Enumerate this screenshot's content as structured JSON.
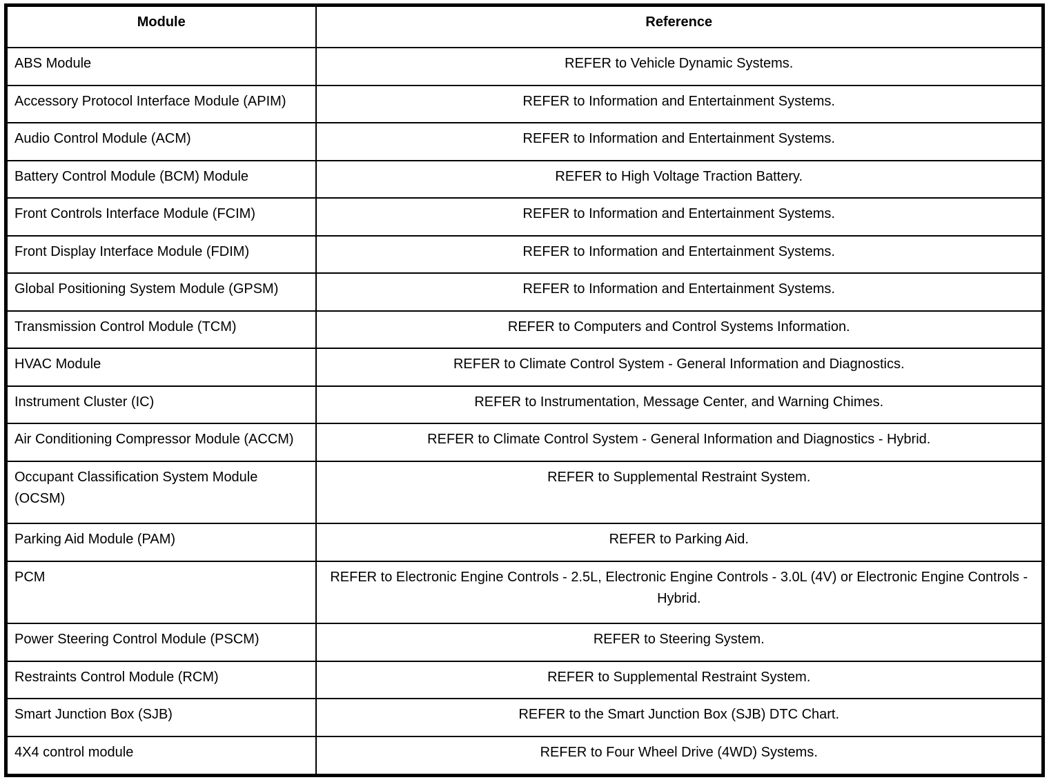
{
  "colors": {
    "background": "#ffffff",
    "text": "#000000",
    "border": "#000000"
  },
  "table": {
    "headers": {
      "module": "Module",
      "reference": "Reference"
    },
    "rows": [
      {
        "module": "ABS Module",
        "reference": "REFER to Vehicle Dynamic Systems."
      },
      {
        "module": "Accessory Protocol Interface Module (APIM)",
        "reference": "REFER to Information and Entertainment Systems."
      },
      {
        "module": "Audio Control Module (ACM)",
        "reference": "REFER to Information and Entertainment Systems."
      },
      {
        "module": "Battery Control Module (BCM) Module",
        "reference": "REFER to High Voltage Traction Battery."
      },
      {
        "module": "Front Controls Interface Module (FCIM)",
        "reference": "REFER to Information and Entertainment Systems."
      },
      {
        "module": "Front Display Interface Module (FDIM)",
        "reference": "REFER to Information and Entertainment Systems."
      },
      {
        "module": "Global Positioning System Module (GPSM)",
        "reference": "REFER to Information and Entertainment Systems."
      },
      {
        "module": "Transmission Control Module (TCM)",
        "reference": "REFER to Computers and Control Systems Information."
      },
      {
        "module": "HVAC Module",
        "reference": "REFER to Climate Control System - General Information and Diagnostics."
      },
      {
        "module": "Instrument Cluster (IC)",
        "reference": "REFER to Instrumentation, Message Center, and Warning Chimes."
      },
      {
        "module": "Air Conditioning Compressor Module (ACCM)",
        "reference": "REFER to Climate Control System - General Information and Diagnostics - Hybrid."
      },
      {
        "module": "Occupant Classification System Module (OCSM)",
        "reference": "REFER to Supplemental Restraint System."
      },
      {
        "module": "Parking Aid Module (PAM)",
        "reference": "REFER to Parking Aid."
      },
      {
        "module": "PCM",
        "reference": "REFER to Electronic Engine Controls - 2.5L, Electronic Engine Controls - 3.0L (4V) or Electronic Engine Controls - Hybrid."
      },
      {
        "module": "Power Steering Control Module (PSCM)",
        "reference": "REFER to Steering System."
      },
      {
        "module": "Restraints Control Module (RCM)",
        "reference": "REFER to Supplemental Restraint System."
      },
      {
        "module": "Smart Junction Box (SJB)",
        "reference": "REFER to the Smart Junction Box (SJB) DTC Chart."
      },
      {
        "module": "4X4 control module",
        "reference": "REFER to Four Wheel Drive (4WD) Systems."
      }
    ]
  }
}
